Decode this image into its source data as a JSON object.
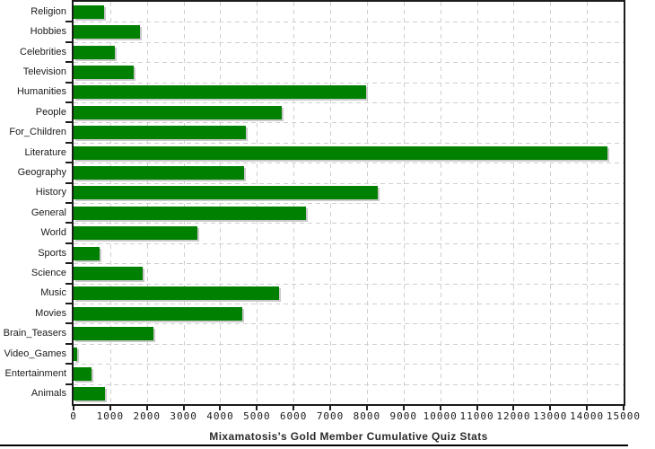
{
  "chart_data": {
    "type": "bar",
    "orientation": "horizontal",
    "title": "Mixamatosis's Gold Member Cumulative Quiz Stats",
    "categories": [
      "Religion",
      "Hobbies",
      "Celebrities",
      "Television",
      "Humanities",
      "People",
      "For_Children",
      "Literature",
      "Geography",
      "History",
      "General",
      "World",
      "Sports",
      "Science",
      "Music",
      "Movies",
      "Brain_Teasers",
      "Video_Games",
      "Entertainment",
      "Animals"
    ],
    "values": [
      840,
      1820,
      1120,
      1650,
      7980,
      5680,
      4690,
      14550,
      4640,
      8300,
      6340,
      3380,
      710,
      1880,
      5600,
      4610,
      2170,
      110,
      480,
      850
    ],
    "xlim": [
      0,
      15000
    ],
    "x_tick_interval": 1000,
    "x_tick_labels": [
      "0",
      "1000",
      "2000",
      "3000",
      "4000",
      "5000",
      "6000",
      "7000",
      "8000",
      "9000",
      "10000",
      "11000",
      "12000",
      "13000",
      "14000",
      "15000"
    ],
    "grid": true,
    "legend": "none",
    "bar_color": "#008000",
    "bar_shadow_color": "#c9c9c9",
    "grid_color": "#cfcfcf",
    "axis_color": "#1c1c1c",
    "text_color": "#1a1a1a"
  }
}
